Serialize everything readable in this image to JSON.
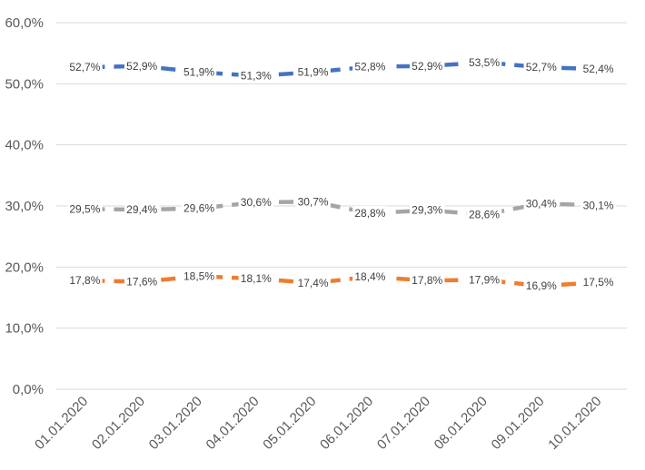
{
  "chart_data": {
    "type": "line",
    "title": "",
    "xlabel": "",
    "ylabel": "",
    "categories": [
      "01.01.2020",
      "02.01.2020",
      "03.01.2020",
      "04.01.2020",
      "05.01.2020",
      "06.01.2020",
      "07.01.2020",
      "08.01.2020",
      "09.01.2020",
      "10.01.2020"
    ],
    "ylim": [
      0,
      60
    ],
    "y_ticks": [
      0,
      10,
      20,
      30,
      40,
      50,
      60
    ],
    "y_tick_labels": [
      "0,0%",
      "10,0%",
      "20,0%",
      "30,0%",
      "40,0%",
      "50,0%",
      "60,0%"
    ],
    "grid": true,
    "line_style": "dashed",
    "series": [
      {
        "color": "#4472c4",
        "values": [
          52.7,
          52.9,
          51.9,
          51.3,
          51.9,
          52.8,
          52.9,
          53.5,
          52.7,
          52.4
        ],
        "labels": [
          "52,7%",
          "52,9%",
          "51,9%",
          "51,3%",
          "51,9%",
          "52,8%",
          "52,9%",
          "53,5%",
          "52,7%",
          "52,4%"
        ]
      },
      {
        "color": "#a5a5a5",
        "values": [
          29.5,
          29.4,
          29.6,
          30.6,
          30.7,
          28.8,
          29.3,
          28.6,
          30.4,
          30.1
        ],
        "labels": [
          "29,5%",
          "29,4%",
          "29,6%",
          "30,6%",
          "30,7%",
          "28,8%",
          "29,3%",
          "28,6%",
          "30,4%",
          "30,1%"
        ]
      },
      {
        "color": "#ed7d31",
        "values": [
          17.8,
          17.6,
          18.5,
          18.1,
          17.4,
          18.4,
          17.8,
          17.9,
          16.9,
          17.5
        ],
        "labels": [
          "17,8%",
          "17,6%",
          "18,5%",
          "18,1%",
          "17,4%",
          "18,4%",
          "17,8%",
          "17,9%",
          "16,9%",
          "17,5%"
        ]
      }
    ]
  }
}
